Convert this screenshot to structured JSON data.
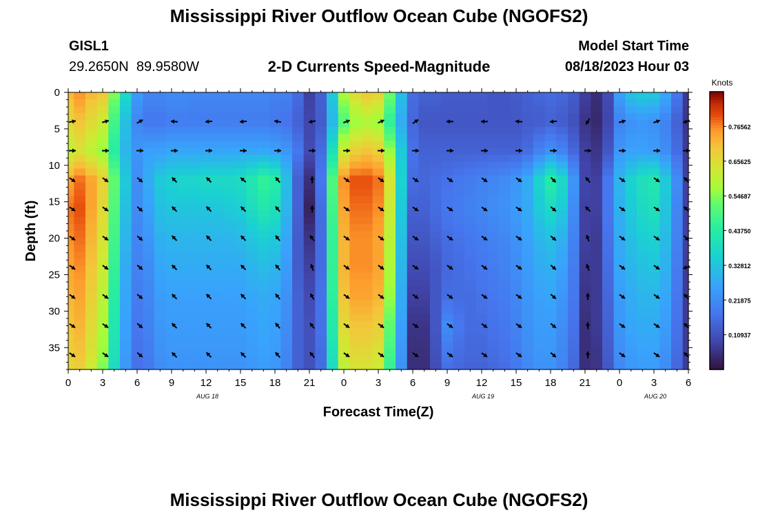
{
  "header": {
    "title": "Mississippi River Outflow Ocean Cube (NGOFS2)",
    "station_id": "GISL1",
    "station_coords": "29.2650N  89.9580W",
    "plot_subtitle": "2-D Currents Speed-Magnitude",
    "model_start_label": "Model Start Time",
    "model_start_value": "08/18/2023 Hour 03"
  },
  "footer": {
    "next_title": "Mississippi River Outflow Ocean Cube (NGOFS2)"
  },
  "chart_data": {
    "type": "heatmap",
    "title": "2-D Currents Speed-Magnitude",
    "xlabel": "Forecast Time(Z)",
    "ylabel": "Depth (ft)",
    "x_tick_labels": [
      "0",
      "3",
      "6",
      "9",
      "12",
      "15",
      "18",
      "21",
      "0",
      "3",
      "6",
      "9",
      "12",
      "15",
      "18",
      "21",
      "0",
      "3",
      "6"
    ],
    "x_hours": [
      0,
      3,
      6,
      9,
      12,
      15,
      18,
      21,
      24,
      27,
      30,
      33,
      36,
      39,
      42,
      45,
      48,
      51,
      54
    ],
    "date_labels": [
      {
        "label": "AUG 18",
        "hour": 12
      },
      {
        "label": "AUG 19",
        "hour": 36
      },
      {
        "label": "AUG 20",
        "hour": 51
      }
    ],
    "xlim": [
      0,
      54
    ],
    "ylim": [
      38,
      0
    ],
    "y_ticks": [
      0,
      5,
      10,
      15,
      20,
      25,
      30,
      35
    ],
    "colorbar": {
      "title": "Knots",
      "range": [
        0,
        0.875
      ],
      "tick_labels": [
        "0.76562",
        "0.65625",
        "0.54687",
        "0.43750",
        "0.32812",
        "0.21875",
        "0.10937"
      ],
      "tick_values": [
        0.765625,
        0.65625,
        0.546875,
        0.4375,
        0.328125,
        0.21875,
        0.109375
      ],
      "colormap": "turbo"
    },
    "speed_knots": {
      "hours": [
        0,
        1,
        2,
        3,
        4,
        5,
        6,
        7,
        8,
        9,
        10,
        11,
        12,
        13,
        14,
        15,
        16,
        17,
        18,
        19,
        20,
        21,
        22,
        23,
        24,
        25,
        26,
        27,
        28,
        29,
        30,
        31,
        32,
        33,
        34,
        35,
        36,
        37,
        38,
        39,
        40,
        41,
        42,
        43,
        44,
        45,
        46,
        47,
        48,
        49,
        50,
        51,
        52,
        53,
        54
      ],
      "depths_ft": [
        0,
        4,
        8,
        12,
        16,
        20,
        24,
        28,
        32,
        36,
        38
      ],
      "values": [
        [
          0.72,
          0.76,
          0.72,
          0.7,
          0.55,
          0.38,
          0.25,
          0.21,
          0.21,
          0.22,
          0.22,
          0.21,
          0.21,
          0.21,
          0.21,
          0.21,
          0.21,
          0.21,
          0.2,
          0.2,
          0.16,
          0.08,
          0.14,
          0.34,
          0.58,
          0.66,
          0.7,
          0.68,
          0.54,
          0.32,
          0.16,
          0.14,
          0.14,
          0.13,
          0.13,
          0.13,
          0.13,
          0.12,
          0.12,
          0.13,
          0.14,
          0.15,
          0.16,
          0.15,
          0.13,
          0.08,
          0.05,
          0.1,
          0.26,
          0.33,
          0.35,
          0.34,
          0.28,
          0.18,
          0.07
        ],
        [
          0.66,
          0.7,
          0.66,
          0.62,
          0.48,
          0.32,
          0.21,
          0.18,
          0.18,
          0.19,
          0.19,
          0.19,
          0.19,
          0.19,
          0.19,
          0.19,
          0.19,
          0.19,
          0.18,
          0.17,
          0.14,
          0.09,
          0.13,
          0.3,
          0.5,
          0.56,
          0.58,
          0.56,
          0.45,
          0.28,
          0.15,
          0.12,
          0.12,
          0.12,
          0.12,
          0.12,
          0.12,
          0.12,
          0.12,
          0.12,
          0.13,
          0.13,
          0.14,
          0.13,
          0.11,
          0.06,
          0.04,
          0.09,
          0.2,
          0.23,
          0.24,
          0.23,
          0.2,
          0.14,
          0.06
        ],
        [
          0.6,
          0.64,
          0.6,
          0.56,
          0.44,
          0.3,
          0.24,
          0.26,
          0.26,
          0.27,
          0.27,
          0.27,
          0.27,
          0.27,
          0.27,
          0.27,
          0.27,
          0.27,
          0.26,
          0.24,
          0.18,
          0.1,
          0.16,
          0.4,
          0.62,
          0.68,
          0.7,
          0.68,
          0.56,
          0.34,
          0.17,
          0.14,
          0.14,
          0.14,
          0.14,
          0.14,
          0.14,
          0.14,
          0.14,
          0.14,
          0.16,
          0.2,
          0.23,
          0.2,
          0.15,
          0.08,
          0.06,
          0.12,
          0.24,
          0.26,
          0.26,
          0.25,
          0.22,
          0.16,
          0.07
        ],
        [
          0.74,
          0.78,
          0.74,
          0.68,
          0.52,
          0.34,
          0.22,
          0.28,
          0.34,
          0.36,
          0.37,
          0.37,
          0.38,
          0.38,
          0.38,
          0.39,
          0.42,
          0.46,
          0.44,
          0.32,
          0.14,
          0.05,
          0.18,
          0.5,
          0.76,
          0.8,
          0.8,
          0.78,
          0.64,
          0.36,
          0.16,
          0.15,
          0.16,
          0.17,
          0.18,
          0.19,
          0.2,
          0.21,
          0.22,
          0.24,
          0.28,
          0.36,
          0.44,
          0.38,
          0.24,
          0.09,
          0.08,
          0.18,
          0.3,
          0.36,
          0.4,
          0.42,
          0.34,
          0.22,
          0.08
        ],
        [
          0.78,
          0.8,
          0.74,
          0.66,
          0.5,
          0.32,
          0.22,
          0.26,
          0.32,
          0.33,
          0.33,
          0.33,
          0.33,
          0.33,
          0.34,
          0.35,
          0.39,
          0.42,
          0.4,
          0.3,
          0.14,
          0.03,
          0.16,
          0.48,
          0.74,
          0.78,
          0.78,
          0.76,
          0.62,
          0.34,
          0.14,
          0.14,
          0.16,
          0.18,
          0.19,
          0.2,
          0.21,
          0.22,
          0.23,
          0.25,
          0.28,
          0.34,
          0.38,
          0.34,
          0.22,
          0.08,
          0.08,
          0.18,
          0.29,
          0.34,
          0.38,
          0.4,
          0.33,
          0.21,
          0.08
        ],
        [
          0.76,
          0.78,
          0.72,
          0.64,
          0.48,
          0.3,
          0.21,
          0.24,
          0.29,
          0.3,
          0.3,
          0.3,
          0.3,
          0.3,
          0.3,
          0.31,
          0.33,
          0.35,
          0.34,
          0.27,
          0.13,
          0.06,
          0.16,
          0.46,
          0.72,
          0.76,
          0.76,
          0.74,
          0.6,
          0.32,
          0.12,
          0.12,
          0.14,
          0.16,
          0.17,
          0.18,
          0.19,
          0.2,
          0.21,
          0.23,
          0.26,
          0.3,
          0.32,
          0.29,
          0.2,
          0.08,
          0.07,
          0.17,
          0.28,
          0.32,
          0.35,
          0.36,
          0.31,
          0.2,
          0.08
        ],
        [
          0.74,
          0.76,
          0.7,
          0.62,
          0.46,
          0.28,
          0.2,
          0.22,
          0.27,
          0.28,
          0.28,
          0.28,
          0.28,
          0.28,
          0.28,
          0.28,
          0.3,
          0.31,
          0.3,
          0.25,
          0.13,
          0.08,
          0.16,
          0.46,
          0.72,
          0.76,
          0.76,
          0.74,
          0.58,
          0.3,
          0.1,
          0.1,
          0.12,
          0.15,
          0.16,
          0.17,
          0.18,
          0.19,
          0.2,
          0.22,
          0.25,
          0.28,
          0.29,
          0.26,
          0.19,
          0.07,
          0.07,
          0.16,
          0.27,
          0.3,
          0.32,
          0.33,
          0.29,
          0.19,
          0.07
        ],
        [
          0.72,
          0.74,
          0.68,
          0.6,
          0.44,
          0.27,
          0.19,
          0.21,
          0.25,
          0.26,
          0.26,
          0.26,
          0.26,
          0.26,
          0.26,
          0.26,
          0.27,
          0.28,
          0.27,
          0.23,
          0.14,
          0.1,
          0.17,
          0.45,
          0.7,
          0.74,
          0.74,
          0.72,
          0.56,
          0.28,
          0.08,
          0.08,
          0.12,
          0.16,
          0.16,
          0.16,
          0.17,
          0.18,
          0.19,
          0.21,
          0.24,
          0.26,
          0.27,
          0.24,
          0.18,
          0.06,
          0.07,
          0.15,
          0.25,
          0.28,
          0.3,
          0.3,
          0.27,
          0.18,
          0.07
        ],
        [
          0.7,
          0.72,
          0.66,
          0.58,
          0.42,
          0.26,
          0.18,
          0.2,
          0.24,
          0.25,
          0.25,
          0.25,
          0.25,
          0.25,
          0.25,
          0.25,
          0.26,
          0.27,
          0.26,
          0.22,
          0.14,
          0.11,
          0.17,
          0.43,
          0.66,
          0.7,
          0.7,
          0.68,
          0.52,
          0.26,
          0.06,
          0.06,
          0.12,
          0.22,
          0.18,
          0.16,
          0.16,
          0.17,
          0.18,
          0.2,
          0.23,
          0.25,
          0.25,
          0.22,
          0.17,
          0.05,
          0.07,
          0.14,
          0.24,
          0.27,
          0.28,
          0.28,
          0.25,
          0.17,
          0.07
        ],
        [
          0.68,
          0.7,
          0.64,
          0.56,
          0.4,
          0.25,
          0.17,
          0.19,
          0.23,
          0.24,
          0.24,
          0.24,
          0.24,
          0.24,
          0.24,
          0.24,
          0.25,
          0.26,
          0.25,
          0.21,
          0.14,
          0.11,
          0.16,
          0.4,
          0.62,
          0.66,
          0.66,
          0.64,
          0.48,
          0.24,
          0.05,
          0.05,
          0.11,
          0.18,
          0.16,
          0.15,
          0.15,
          0.16,
          0.17,
          0.19,
          0.22,
          0.24,
          0.24,
          0.21,
          0.16,
          0.05,
          0.06,
          0.13,
          0.22,
          0.25,
          0.26,
          0.26,
          0.23,
          0.16,
          0.07
        ],
        [
          0.66,
          0.68,
          0.62,
          0.54,
          0.38,
          0.24,
          0.17,
          0.18,
          0.22,
          0.23,
          0.23,
          0.23,
          0.23,
          0.23,
          0.23,
          0.23,
          0.24,
          0.25,
          0.24,
          0.2,
          0.14,
          0.11,
          0.16,
          0.38,
          0.6,
          0.64,
          0.64,
          0.62,
          0.46,
          0.23,
          0.05,
          0.05,
          0.1,
          0.16,
          0.15,
          0.14,
          0.14,
          0.15,
          0.16,
          0.18,
          0.21,
          0.23,
          0.23,
          0.2,
          0.15,
          0.05,
          0.06,
          0.12,
          0.21,
          0.24,
          0.25,
          0.25,
          0.22,
          0.15,
          0.07
        ]
      ]
    },
    "current_vectors": {
      "hours": [
        0,
        3,
        6,
        9,
        12,
        15,
        18,
        21,
        24,
        27,
        30,
        33,
        36,
        39,
        42,
        45,
        48,
        51,
        54
      ],
      "depths_ft": [
        4,
        8,
        12,
        16,
        20,
        24,
        28,
        32,
        36
      ],
      "direction_deg_to": [
        [
          80,
          75,
          60,
          275,
          265,
          265,
          280,
          260,
          70,
          65,
          55,
          270,
          270,
          275,
          265,
          210,
          75,
          70,
          250
        ],
        [
          90,
          90,
          90,
          90,
          90,
          90,
          90,
          90,
          90,
          90,
          90,
          90,
          90,
          90,
          90,
          90,
          90,
          90,
          90
        ],
        [
          125,
          125,
          130,
          315,
          315,
          310,
          320,
          0,
          125,
          125,
          125,
          125,
          125,
          125,
          135,
          320,
          125,
          125,
          315
        ],
        [
          125,
          125,
          130,
          315,
          315,
          315,
          320,
          0,
          125,
          125,
          125,
          125,
          125,
          125,
          130,
          315,
          125,
          125,
          315
        ],
        [
          125,
          125,
          130,
          315,
          315,
          315,
          320,
          320,
          125,
          125,
          125,
          125,
          125,
          125,
          130,
          340,
          125,
          125,
          135
        ],
        [
          125,
          125,
          130,
          315,
          315,
          315,
          320,
          340,
          125,
          125,
          125,
          125,
          125,
          125,
          130,
          340,
          125,
          125,
          250
        ],
        [
          125,
          125,
          130,
          315,
          315,
          315,
          320,
          330,
          125,
          125,
          125,
          125,
          125,
          125,
          130,
          0,
          125,
          125,
          315
        ],
        [
          125,
          125,
          130,
          315,
          315,
          315,
          320,
          320,
          125,
          125,
          125,
          125,
          125,
          125,
          130,
          0,
          125,
          125,
          315
        ],
        [
          125,
          125,
          130,
          315,
          315,
          315,
          320,
          320,
          125,
          125,
          125,
          125,
          125,
          125,
          130,
          0,
          125,
          125,
          315
        ]
      ]
    }
  }
}
